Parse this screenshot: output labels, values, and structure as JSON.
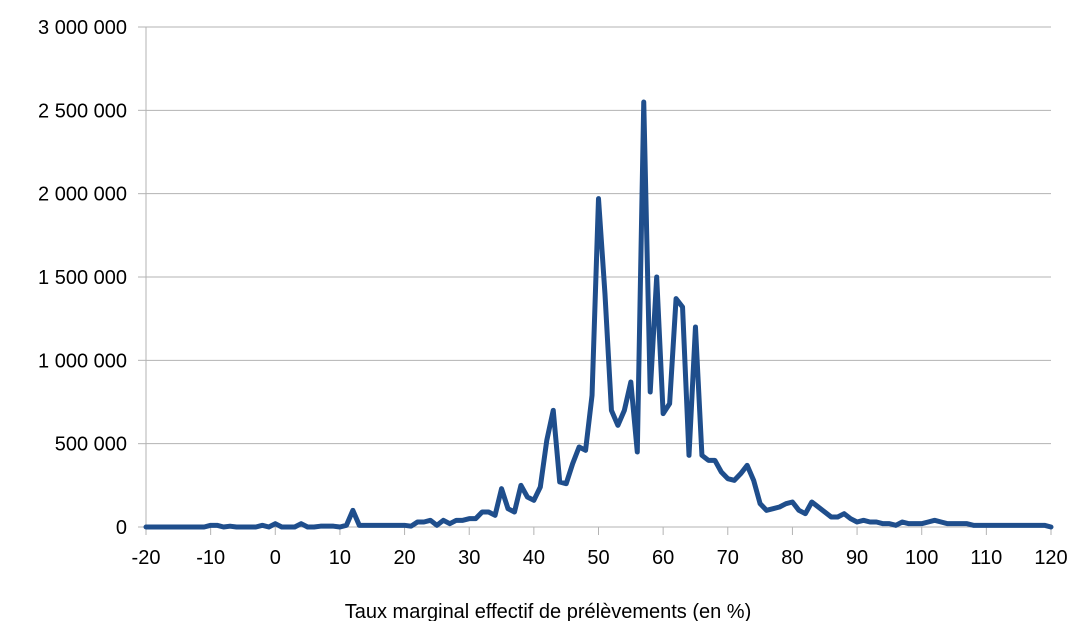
{
  "chart_data": {
    "type": "line",
    "title": "",
    "xlabel": "Taux marginal effectif de prélèvements (en %)",
    "ylabel": "",
    "xlim": [
      -20,
      120
    ],
    "ylim": [
      0,
      3000000
    ],
    "x_ticks": [
      {
        "value": -20,
        "label": "-20"
      },
      {
        "value": -10,
        "label": "-10"
      },
      {
        "value": 0,
        "label": "0"
      },
      {
        "value": 10,
        "label": "10"
      },
      {
        "value": 20,
        "label": "20"
      },
      {
        "value": 30,
        "label": "30"
      },
      {
        "value": 40,
        "label": "40"
      },
      {
        "value": 50,
        "label": "50"
      },
      {
        "value": 60,
        "label": "60"
      },
      {
        "value": 70,
        "label": "70"
      },
      {
        "value": 80,
        "label": "80"
      },
      {
        "value": 90,
        "label": "90"
      },
      {
        "value": 100,
        "label": "100"
      },
      {
        "value": 110,
        "label": "110"
      },
      {
        "value": 120,
        "label": "120"
      }
    ],
    "y_ticks": [
      {
        "value": 0,
        "label": "0"
      },
      {
        "value": 500000,
        "label": "500 000"
      },
      {
        "value": 1000000,
        "label": "1 000 000"
      },
      {
        "value": 1500000,
        "label": "1 500 000"
      },
      {
        "value": 2000000,
        "label": "2 000 000"
      },
      {
        "value": 2500000,
        "label": "2 500 000"
      },
      {
        "value": 3000000,
        "label": "3 000 000"
      }
    ],
    "grid": "horizontal",
    "legend": "none",
    "series": [
      {
        "color": "#1f4e8c",
        "x": [
          -20,
          -19,
          -18,
          -17,
          -16,
          -15,
          -14,
          -13,
          -12,
          -11,
          -10,
          -9,
          -8,
          -7,
          -6,
          -5,
          -4,
          -3,
          -2,
          -1,
          0,
          1,
          2,
          3,
          4,
          5,
          6,
          7,
          8,
          9,
          10,
          11,
          12,
          13,
          14,
          15,
          16,
          17,
          18,
          19,
          20,
          21,
          22,
          23,
          24,
          25,
          26,
          27,
          28,
          29,
          30,
          31,
          32,
          33,
          34,
          35,
          36,
          37,
          38,
          39,
          40,
          41,
          42,
          43,
          44,
          45,
          46,
          47,
          48,
          49,
          50,
          51,
          52,
          53,
          54,
          55,
          56,
          57,
          58,
          59,
          60,
          61,
          62,
          63,
          64,
          65,
          66,
          67,
          68,
          69,
          70,
          71,
          72,
          73,
          74,
          75,
          76,
          77,
          78,
          79,
          80,
          81,
          82,
          83,
          84,
          85,
          86,
          87,
          88,
          89,
          90,
          91,
          92,
          93,
          94,
          95,
          96,
          97,
          98,
          99,
          100,
          101,
          102,
          103,
          104,
          105,
          106,
          107,
          108,
          109,
          110,
          111,
          112,
          113,
          114,
          115,
          116,
          117,
          118,
          119,
          120
        ],
        "y": [
          0,
          0,
          0,
          0,
          0,
          0,
          0,
          0,
          0,
          0,
          10000,
          10000,
          0,
          5000,
          0,
          0,
          0,
          0,
          10000,
          0,
          20000,
          0,
          0,
          0,
          20000,
          0,
          0,
          5000,
          5000,
          5000,
          0,
          10000,
          100000,
          10000,
          10000,
          10000,
          10000,
          10000,
          10000,
          10000,
          10000,
          5000,
          30000,
          30000,
          40000,
          10000,
          40000,
          20000,
          40000,
          40000,
          50000,
          50000,
          90000,
          90000,
          70000,
          230000,
          110000,
          90000,
          250000,
          180000,
          160000,
          240000,
          520000,
          700000,
          270000,
          260000,
          380000,
          480000,
          460000,
          790000,
          1970000,
          1400000,
          700000,
          610000,
          700000,
          870000,
          450000,
          2550000,
          810000,
          1500000,
          680000,
          740000,
          1370000,
          1320000,
          430000,
          1200000,
          430000,
          400000,
          400000,
          330000,
          290000,
          280000,
          320000,
          370000,
          280000,
          140000,
          100000,
          110000,
          120000,
          140000,
          150000,
          100000,
          80000,
          150000,
          120000,
          90000,
          60000,
          60000,
          80000,
          50000,
          30000,
          40000,
          30000,
          30000,
          20000,
          20000,
          10000,
          30000,
          20000,
          20000,
          20000,
          30000,
          40000,
          30000,
          20000,
          20000,
          20000,
          20000,
          10000,
          10000,
          10000,
          10000,
          10000,
          10000,
          10000,
          10000,
          10000,
          10000,
          10000,
          10000,
          0
        ]
      }
    ]
  }
}
